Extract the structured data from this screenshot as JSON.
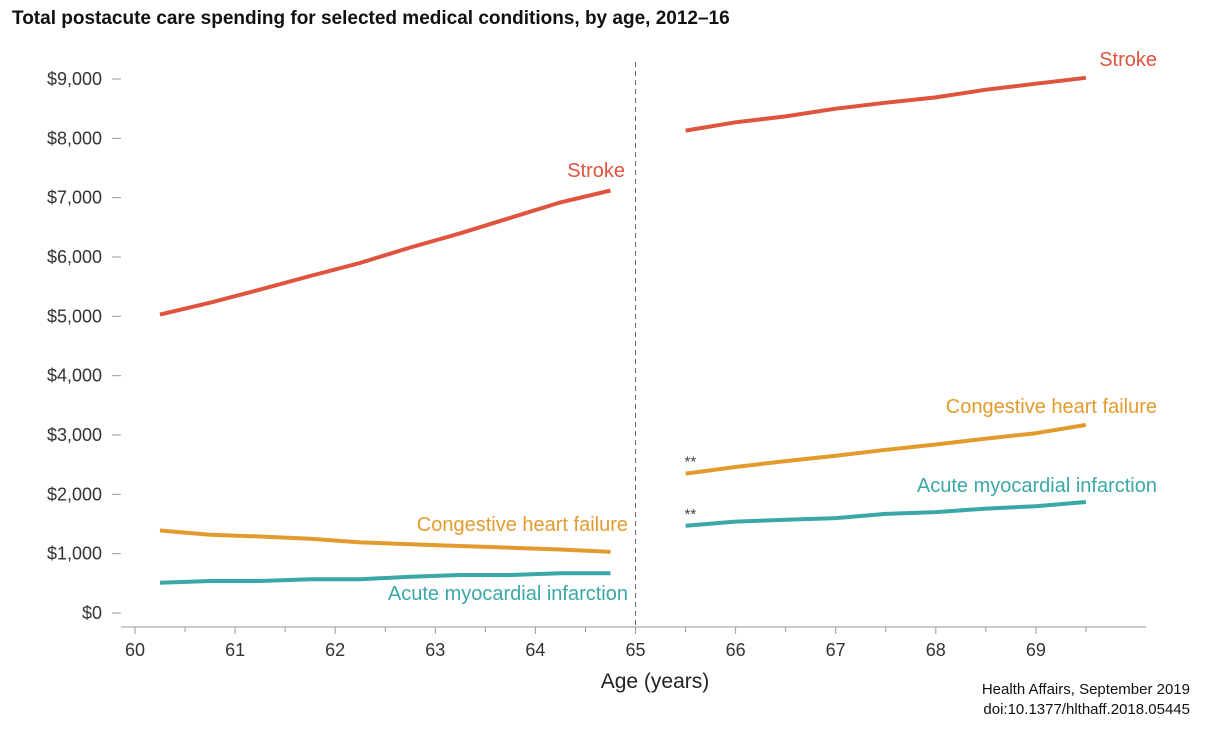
{
  "chart_data": {
    "type": "line",
    "title": "Total postacute care spending for selected medical conditions, by age, 2012–16",
    "xlabel": "Age (years)",
    "ylabel": "",
    "xlim": [
      60,
      70
    ],
    "ylim": [
      0,
      9000
    ],
    "x_ticks": [
      60,
      61,
      62,
      63,
      64,
      65,
      66,
      67,
      68,
      69
    ],
    "x_tick_labels": [
      "60",
      "61",
      "62",
      "63",
      "64",
      "65",
      "66",
      "67",
      "68",
      "69"
    ],
    "y_ticks": [
      0,
      1000,
      2000,
      3000,
      4000,
      5000,
      6000,
      7000,
      8000,
      9000
    ],
    "y_tick_labels": [
      "$0",
      "$1,000",
      "$2,000",
      "$3,000",
      "$4,000",
      "$5,000",
      "$6,000",
      "$7,000",
      "$8,000",
      "$9,000"
    ],
    "discontinuity_at": 65,
    "grid": false,
    "series": [
      {
        "name": "Stroke",
        "color": "#e0533d",
        "segments": [
          {
            "x": [
              60.25,
              60.75,
              61.25,
              61.75,
              62.25,
              62.75,
              63.25,
              63.75,
              64.25,
              64.75
            ],
            "y": [
              5030,
              5230,
              5450,
              5680,
              5900,
              6160,
              6400,
              6660,
              6920,
              7120
            ]
          },
          {
            "x": [
              65.5,
              66.0,
              66.5,
              67.0,
              67.5,
              68.0,
              68.5,
              69.0,
              69.5
            ],
            "y": [
              8130,
              8270,
              8370,
              8500,
              8600,
              8690,
              8820,
              8920,
              9020
            ]
          }
        ],
        "labels": [
          "Stroke",
          "Stroke"
        ]
      },
      {
        "name": "Congestive heart failure",
        "color": "#e39b2e",
        "segments": [
          {
            "x": [
              60.25,
              60.75,
              61.25,
              61.75,
              62.25,
              62.75,
              63.25,
              63.75,
              64.25,
              64.75
            ],
            "y": [
              1390,
              1320,
              1290,
              1250,
              1190,
              1160,
              1130,
              1100,
              1070,
              1030
            ]
          },
          {
            "x": [
              65.5,
              66.0,
              66.5,
              67.0,
              67.5,
              68.0,
              68.5,
              69.0,
              69.5
            ],
            "y": [
              2350,
              2460,
              2560,
              2650,
              2750,
              2840,
              2940,
              3030,
              3170
            ]
          }
        ],
        "labels": [
          "Congestive heart failure",
          "Congestive heart failure"
        ]
      },
      {
        "name": "Acute myocardial infarction",
        "color": "#3aa8a6",
        "segments": [
          {
            "x": [
              60.25,
              60.75,
              61.25,
              61.75,
              62.25,
              62.75,
              63.25,
              63.75,
              64.25,
              64.75
            ],
            "y": [
              510,
              540,
              540,
              570,
              570,
              610,
              640,
              640,
              670,
              670
            ]
          },
          {
            "x": [
              65.5,
              66.0,
              66.5,
              67.0,
              67.5,
              68.0,
              68.5,
              69.0,
              69.5
            ],
            "y": [
              1470,
              1540,
              1570,
              1600,
              1670,
              1700,
              1760,
              1800,
              1870
            ]
          }
        ],
        "labels": [
          "Acute myocardial infarction",
          "Acute myocardial infarction"
        ]
      }
    ],
    "annotations": [
      {
        "text": "**",
        "x": 65.5,
        "y": 2350,
        "series": "Congestive heart failure"
      },
      {
        "text": "**",
        "x": 65.5,
        "y": 1470,
        "series": "Acute myocardial infarction"
      }
    ],
    "source": [
      "Health Affairs, September 2019",
      "doi:10.1377/hlthaff.2018.05445"
    ]
  }
}
